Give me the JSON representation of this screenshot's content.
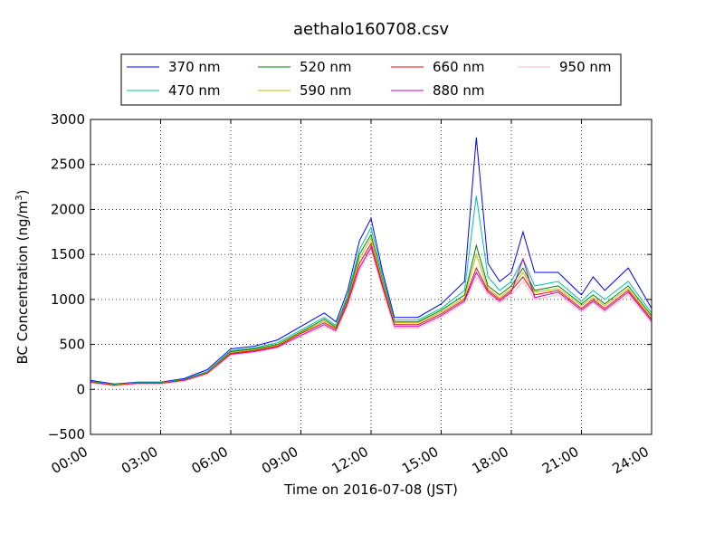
{
  "chart_data": {
    "type": "line",
    "title": "aethalo160708.csv",
    "xlabel": "Time on 2016-07-08 (JST)",
    "ylabel_main": "BC Concentration (ng/m",
    "ylabel_sup": "3",
    "ylabel_end": ")",
    "xlim": [
      0,
      24
    ],
    "ylim": [
      -500,
      3000
    ],
    "x_ticks": [
      0,
      3,
      6,
      9,
      12,
      15,
      18,
      21,
      24
    ],
    "x_tick_labels": [
      "00:00",
      "03:00",
      "06:00",
      "09:00",
      "12:00",
      "15:00",
      "18:00",
      "21:00",
      "24:00"
    ],
    "y_ticks": [
      -500,
      0,
      500,
      1000,
      1500,
      2000,
      2500,
      3000
    ],
    "y_tick_labels": [
      "−500",
      "0",
      "500",
      "1000",
      "1500",
      "2000",
      "2500",
      "3000"
    ],
    "grid": true,
    "legend_position": "top-center",
    "x": [
      0,
      1,
      2,
      3,
      4,
      5,
      6,
      7,
      8,
      9,
      10,
      10.5,
      11,
      11.5,
      12,
      12.5,
      13,
      14,
      15,
      16,
      16.5,
      17,
      17.5,
      18,
      18.5,
      19,
      20,
      21,
      21.5,
      22,
      23,
      24
    ],
    "series": [
      {
        "name": "370 nm",
        "color": "#0000ff",
        "values": [
          100,
          60,
          80,
          80,
          120,
          220,
          450,
          480,
          550,
          700,
          850,
          750,
          1100,
          1650,
          1900,
          1300,
          800,
          800,
          950,
          1200,
          2800,
          1400,
          1200,
          1300,
          1750,
          1300,
          1300,
          1050,
          1250,
          1100,
          1350,
          900
        ]
      },
      {
        "name": "470 nm",
        "color": "#00c0a0",
        "values": [
          90,
          55,
          75,
          75,
          110,
          200,
          430,
          460,
          520,
          660,
          800,
          710,
          1050,
          1550,
          1800,
          1250,
          770,
          770,
          900,
          1100,
          2150,
          1250,
          1100,
          1200,
          1450,
          1150,
          1200,
          980,
          1100,
          1000,
          1200,
          850
        ]
      },
      {
        "name": "520 nm",
        "color": "#008000",
        "values": [
          85,
          50,
          70,
          70,
          105,
          190,
          420,
          450,
          500,
          640,
          780,
          690,
          1020,
          1500,
          1720,
          1200,
          750,
          750,
          880,
          1050,
          1600,
          1150,
          1050,
          1150,
          1350,
          1100,
          1150,
          950,
          1050,
          950,
          1150,
          820
        ]
      },
      {
        "name": "590 nm",
        "color": "#bfbf00",
        "values": [
          80,
          48,
          68,
          68,
          100,
          185,
          410,
          440,
          490,
          630,
          760,
          680,
          1000,
          1450,
          1680,
          1180,
          740,
          740,
          860,
          1020,
          1500,
          1120,
          1020,
          1120,
          1300,
          1080,
          1120,
          930,
          1020,
          930,
          1120,
          800
        ]
      },
      {
        "name": "660 nm",
        "color": "#ff0000",
        "values": [
          78,
          45,
          65,
          65,
          98,
          180,
          400,
          430,
          480,
          620,
          740,
          670,
          980,
          1400,
          1620,
          1150,
          720,
          720,
          840,
          1000,
          1350,
          1100,
          1000,
          1100,
          1250,
          1050,
          1100,
          900,
          1000,
          900,
          1100,
          780
        ]
      },
      {
        "name": "880 nm",
        "color": "#c000c0",
        "values": [
          75,
          40,
          60,
          60,
          95,
          175,
          390,
          420,
          470,
          600,
          720,
          650,
          950,
          1350,
          1580,
          1120,
          700,
          700,
          820,
          980,
          1300,
          1080,
          980,
          1080,
          1450,
          1020,
          1080,
          880,
          980,
          880,
          1080,
          760
        ]
      },
      {
        "name": "950 nm",
        "color": "#ffb6c1",
        "values": [
          70,
          38,
          58,
          58,
          90,
          170,
          380,
          410,
          460,
          590,
          700,
          640,
          930,
          1320,
          1550,
          1100,
          680,
          680,
          800,
          960,
          1250,
          1050,
          960,
          1050,
          1200,
          1000,
          1050,
          860,
          960,
          860,
          1050,
          740
        ]
      }
    ]
  }
}
